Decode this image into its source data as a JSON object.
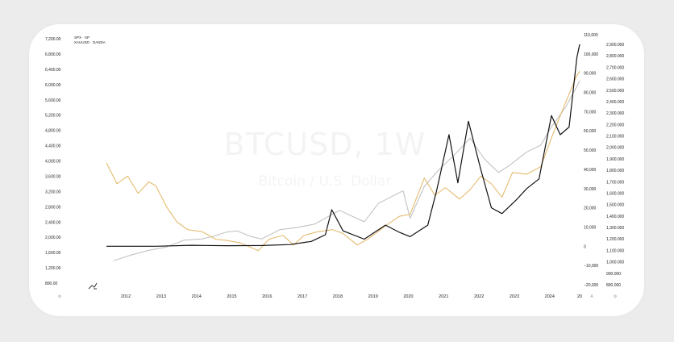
{
  "watermark": {
    "title": "BTCUSD, 1W",
    "subtitle": "Bitcoin / U.S. Dollar"
  },
  "legend": [
    "SPX · SP",
    "XAUUSD · OANDA"
  ],
  "corner_labels": {
    "bottom_left": "⚙",
    "right_1": "A",
    "right_2": "⚙",
    "x_end": "20"
  },
  "colors": {
    "spx": "#bdbdbd",
    "gold": "#e3b563",
    "btc": "#111111",
    "background": "#ffffff",
    "page": "#ececec"
  },
  "chart_data": {
    "type": "line",
    "x_ticks": [
      "2012",
      "2013",
      "2014",
      "2015",
      "2016",
      "2017",
      "2018",
      "2019",
      "2020",
      "2021",
      "2022",
      "2023",
      "2024"
    ],
    "left_axis": {
      "series": "XAUUSD",
      "ticks": [
        "7,200.00",
        "6,800.00",
        "6,400.00",
        "6,000.00",
        "5,600.00",
        "5,200.00",
        "4,800.00",
        "4,400.00",
        "4,000.00",
        "3,600.00",
        "3,200.00",
        "2,800.00",
        "2,400.00",
        "2,000.00",
        "1,600.00",
        "1,200.00",
        "800.00"
      ]
    },
    "right_axis_btc": {
      "series": "BTCUSD",
      "ticks": [
        "110,000",
        "100,000",
        "90,000",
        "80,000",
        "70,000",
        "60,000",
        "50,000",
        "40,000",
        "30,000",
        "20,000",
        "10,000",
        "0",
        "−10,000",
        "−20,000"
      ]
    },
    "right_axis_spx": {
      "series": "SPX",
      "ticks": [
        "2,900.000",
        "2,800.000",
        "2,700.000",
        "2,600.000",
        "2,500.000",
        "2,400.000",
        "2,300.000",
        "2,200.000",
        "2,100.000",
        "2,000.000",
        "1,900.000",
        "1,800.000",
        "1,700.000",
        "1,600.000",
        "1,500.000",
        "1,400.000",
        "1,300.000",
        "1,200.000",
        "1,100.000",
        "1,000.000",
        "900.000",
        "800.000"
      ]
    },
    "series": [
      {
        "name": "SPX",
        "axis": "spx",
        "points": [
          [
            2011.8,
            1010
          ],
          [
            2012.3,
            1060
          ],
          [
            2012.8,
            1100
          ],
          [
            2013.3,
            1130
          ],
          [
            2013.8,
            1190
          ],
          [
            2014.3,
            1200
          ],
          [
            2014.6,
            1220
          ],
          [
            2015.0,
            1260
          ],
          [
            2015.3,
            1270
          ],
          [
            2015.7,
            1220
          ],
          [
            2016.0,
            1200
          ],
          [
            2016.5,
            1280
          ],
          [
            2017.0,
            1300
          ],
          [
            2017.5,
            1330
          ],
          [
            2017.9,
            1400
          ],
          [
            2018.2,
            1450
          ],
          [
            2018.9,
            1350
          ],
          [
            2019.3,
            1510
          ],
          [
            2019.8,
            1590
          ],
          [
            2020.0,
            1620
          ],
          [
            2020.2,
            1380
          ],
          [
            2020.6,
            1660
          ],
          [
            2021.0,
            1800
          ],
          [
            2021.5,
            1950
          ],
          [
            2021.9,
            2080
          ],
          [
            2022.3,
            1900
          ],
          [
            2022.7,
            1780
          ],
          [
            2023.0,
            1840
          ],
          [
            2023.5,
            1960
          ],
          [
            2023.9,
            2020
          ],
          [
            2024.2,
            2180
          ],
          [
            2024.6,
            2350
          ],
          [
            2024.9,
            2520
          ],
          [
            2025.0,
            2580
          ]
        ]
      },
      {
        "name": "XAUUSD",
        "axis": "left",
        "points": [
          [
            2011.6,
            3950
          ],
          [
            2011.9,
            3400
          ],
          [
            2012.2,
            3600
          ],
          [
            2012.5,
            3150
          ],
          [
            2012.8,
            3450
          ],
          [
            2013.0,
            3350
          ],
          [
            2013.3,
            2800
          ],
          [
            2013.6,
            2400
          ],
          [
            2013.9,
            2200
          ],
          [
            2014.3,
            2150
          ],
          [
            2014.7,
            1950
          ],
          [
            2015.0,
            1920
          ],
          [
            2015.4,
            1850
          ],
          [
            2015.9,
            1650
          ],
          [
            2016.2,
            1950
          ],
          [
            2016.6,
            2050
          ],
          [
            2016.9,
            1800
          ],
          [
            2017.2,
            2050
          ],
          [
            2017.6,
            2150
          ],
          [
            2018.0,
            2200
          ],
          [
            2018.3,
            2100
          ],
          [
            2018.7,
            1800
          ],
          [
            2019.0,
            1950
          ],
          [
            2019.5,
            2300
          ],
          [
            2019.9,
            2550
          ],
          [
            2020.2,
            2600
          ],
          [
            2020.6,
            3550
          ],
          [
            2020.9,
            3100
          ],
          [
            2021.2,
            3300
          ],
          [
            2021.6,
            3000
          ],
          [
            2021.9,
            3250
          ],
          [
            2022.2,
            3600
          ],
          [
            2022.5,
            3400
          ],
          [
            2022.8,
            3050
          ],
          [
            2023.1,
            3700
          ],
          [
            2023.5,
            3650
          ],
          [
            2023.9,
            3850
          ],
          [
            2024.2,
            4600
          ],
          [
            2024.5,
            5300
          ],
          [
            2024.9,
            6200
          ],
          [
            2025.0,
            6350
          ]
        ]
      },
      {
        "name": "BTCUSD",
        "axis": "btc",
        "points": [
          [
            2011.6,
            0
          ],
          [
            2013.0,
            0
          ],
          [
            2014.0,
            500
          ],
          [
            2015.0,
            300
          ],
          [
            2016.0,
            400
          ],
          [
            2016.8,
            900
          ],
          [
            2017.4,
            2500
          ],
          [
            2017.8,
            6000
          ],
          [
            2017.98,
            19000
          ],
          [
            2018.3,
            8000
          ],
          [
            2018.9,
            3700
          ],
          [
            2019.5,
            11000
          ],
          [
            2019.9,
            7200
          ],
          [
            2020.2,
            5000
          ],
          [
            2020.7,
            11000
          ],
          [
            2020.95,
            29000
          ],
          [
            2021.3,
            58000
          ],
          [
            2021.55,
            33000
          ],
          [
            2021.85,
            65000
          ],
          [
            2022.2,
            40000
          ],
          [
            2022.5,
            20000
          ],
          [
            2022.8,
            17000
          ],
          [
            2023.2,
            24000
          ],
          [
            2023.5,
            30000
          ],
          [
            2023.85,
            35000
          ],
          [
            2024.2,
            68000
          ],
          [
            2024.45,
            58000
          ],
          [
            2024.7,
            62000
          ],
          [
            2024.92,
            98000
          ],
          [
            2025.0,
            105000
          ]
        ]
      }
    ],
    "grid": false,
    "legend_position": "top-left"
  }
}
